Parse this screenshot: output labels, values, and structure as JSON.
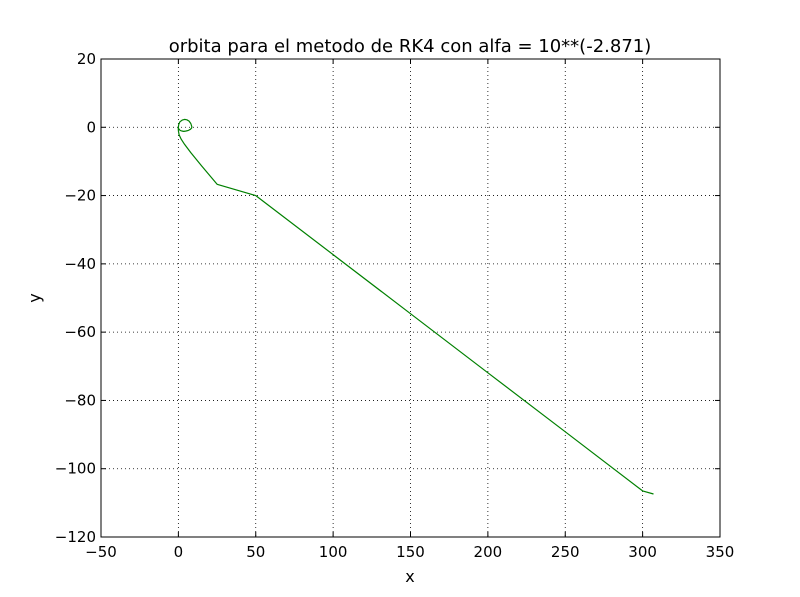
{
  "chart_data": {
    "type": "line",
    "title": "orbita para el metodo de RK4 con alfa = 10**(-2.871)",
    "xlabel": "x",
    "ylabel": "y",
    "xlim": [
      -50,
      350
    ],
    "ylim": [
      -120,
      20
    ],
    "xticks": [
      -50,
      0,
      50,
      100,
      150,
      200,
      250,
      300,
      350
    ],
    "yticks": [
      -120,
      -100,
      -80,
      -60,
      -40,
      -20,
      0,
      20
    ],
    "xtick_labels": [
      "−50",
      "0",
      "50",
      "100",
      "150",
      "200",
      "250",
      "300",
      "350"
    ],
    "ytick_labels": [
      "−120",
      "−100",
      "−80",
      "−60",
      "−40",
      "−20",
      "0",
      "20"
    ],
    "grid": true,
    "series": [
      {
        "color": "#008000",
        "x": [
          0,
          0.2,
          1,
          2.5,
          4,
          5.5,
          6.9,
          8,
          8.7,
          8.6,
          7.8,
          6.5,
          5,
          3.5,
          2.2,
          1.2,
          0.5,
          0.1,
          -0.1,
          0,
          0.5,
          1.8,
          4,
          8,
          15,
          25,
          50,
          100,
          150,
          200,
          250,
          300,
          307
        ],
        "y": [
          0,
          0.8,
          1.6,
          2.1,
          2.3,
          2.2,
          1.8,
          1.1,
          0.2,
          -0.2,
          -0.6,
          -0.9,
          -1.1,
          -1.2,
          -1.1,
          -0.9,
          -0.6,
          -0.3,
          0.1,
          -1,
          -2.2,
          -3.5,
          -5,
          -7.4,
          -11.3,
          -16.7,
          -20,
          -37.3,
          -54.6,
          -71.9,
          -89.2,
          -106.5,
          -107.4
        ]
      }
    ]
  }
}
